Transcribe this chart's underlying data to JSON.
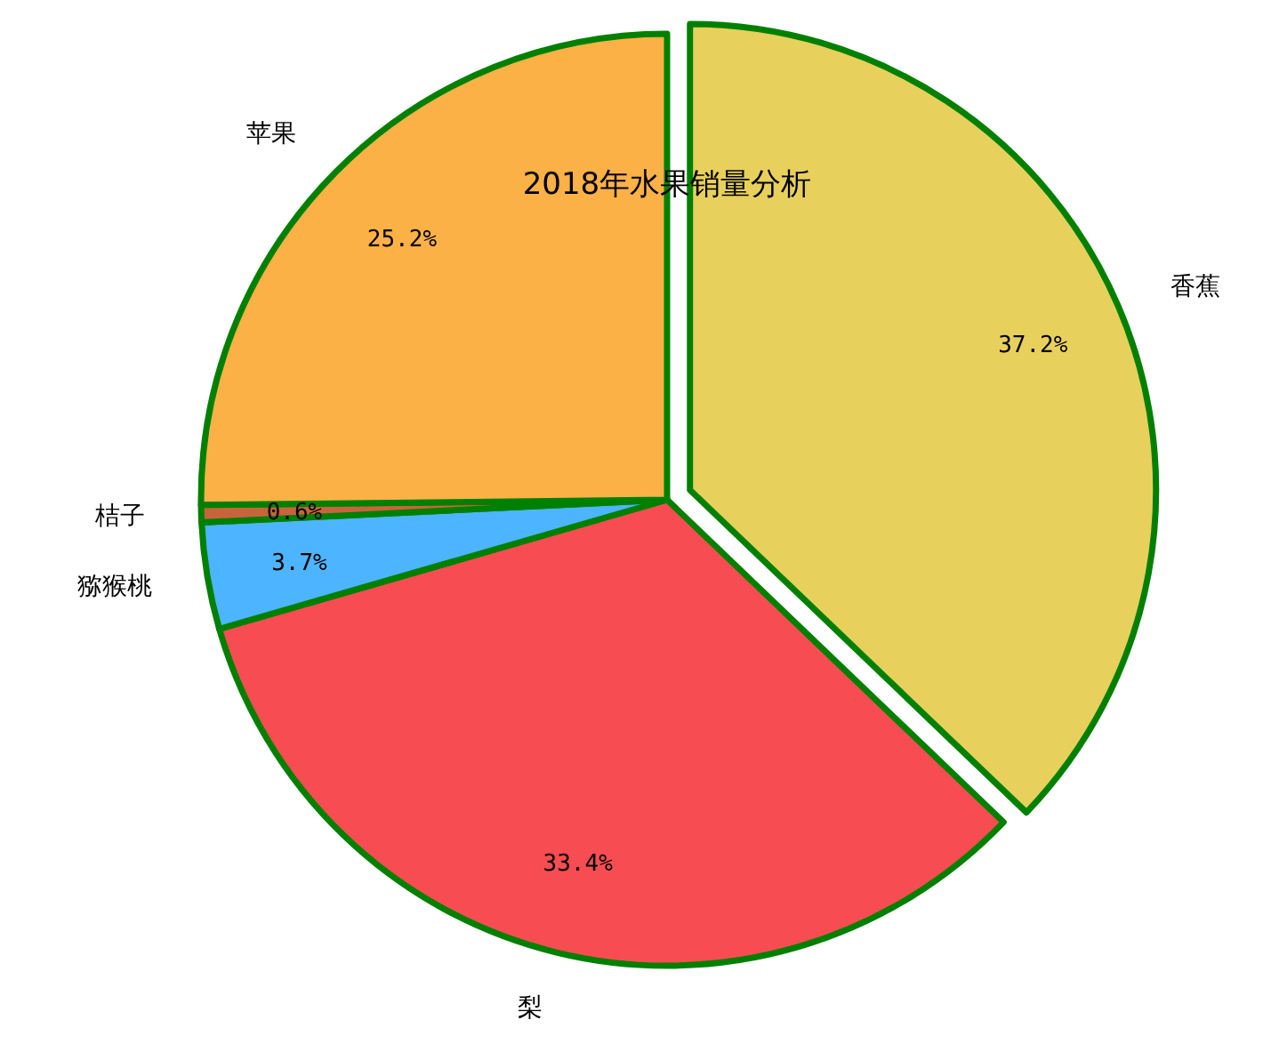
{
  "chart_data": {
    "type": "pie",
    "title": "2018年水果销量分析",
    "categories": [
      "香蕉",
      "梨",
      "猕猴桃",
      "桔子",
      "苹果"
    ],
    "values": [
      37.2,
      33.4,
      3.7,
      0.6,
      25.2
    ],
    "colors": [
      "#e8d05c",
      "#f74d52",
      "#4db5ff",
      "#c8643c",
      "#fbb146"
    ],
    "value_labels": [
      "37.2%",
      "33.4%",
      "3.7%",
      "0.6%",
      "25.2%"
    ]
  }
}
